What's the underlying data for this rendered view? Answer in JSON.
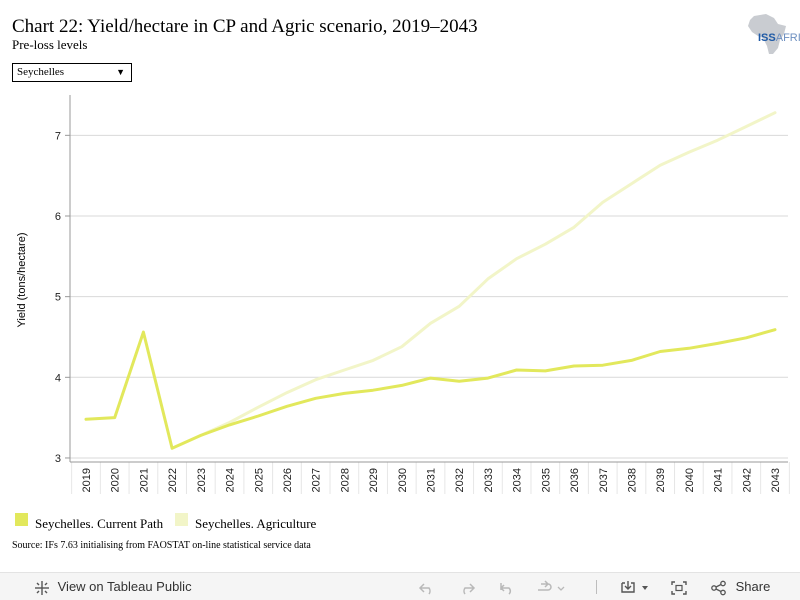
{
  "title": "Chart 22: Yield/hectare in CP and Agric scenario, 2019–2043",
  "subtitle": "Pre-loss levels",
  "logo": {
    "text_main": "ISS",
    "text_sub": "AFRICA"
  },
  "dropdown": {
    "selected": "Seychelles"
  },
  "source": "Source: IFs 7.63 initialising from FAOSTAT on-line statistical service data",
  "toolbar": {
    "view_label": "View on Tableau Public",
    "share_label": "Share"
  },
  "colors": {
    "current_path": "#e2e85c",
    "agriculture": "#f2f5c8",
    "grid": "#d9d9d9",
    "axis": "#999999"
  },
  "chart_data": {
    "type": "line",
    "title": "Chart 22: Yield/hectare in CP and Agric scenario, 2019–2043",
    "subtitle": "Pre-loss levels",
    "xlabel": "",
    "ylabel": "Yield (tons/hectare)",
    "ylim": [
      2.95,
      7.5
    ],
    "yticks": [
      3,
      4,
      5,
      6,
      7
    ],
    "grid": true,
    "legend": "bottom-left",
    "x": [
      2019,
      2020,
      2021,
      2022,
      2023,
      2024,
      2025,
      2026,
      2027,
      2028,
      2029,
      2030,
      2031,
      2032,
      2033,
      2034,
      2035,
      2036,
      2037,
      2038,
      2039,
      2040,
      2041,
      2042,
      2043
    ],
    "series": [
      {
        "name": "Seychelles. Current Path",
        "color": "#e2e85c",
        "values": [
          3.48,
          3.5,
          4.56,
          3.12,
          3.28,
          3.41,
          3.52,
          3.64,
          3.74,
          3.8,
          3.84,
          3.9,
          3.99,
          3.95,
          3.99,
          4.09,
          4.08,
          4.14,
          4.15,
          4.21,
          4.32,
          4.36,
          4.42,
          4.49,
          4.59
        ]
      },
      {
        "name": "Seychelles. Agriculture",
        "color": "#f2f5c8",
        "values": [
          null,
          null,
          null,
          null,
          3.28,
          3.44,
          3.63,
          3.81,
          3.97,
          4.09,
          4.21,
          4.38,
          4.67,
          4.88,
          5.22,
          5.47,
          5.65,
          5.86,
          6.17,
          6.4,
          6.63,
          6.79,
          6.94,
          7.11,
          7.28
        ]
      }
    ]
  }
}
